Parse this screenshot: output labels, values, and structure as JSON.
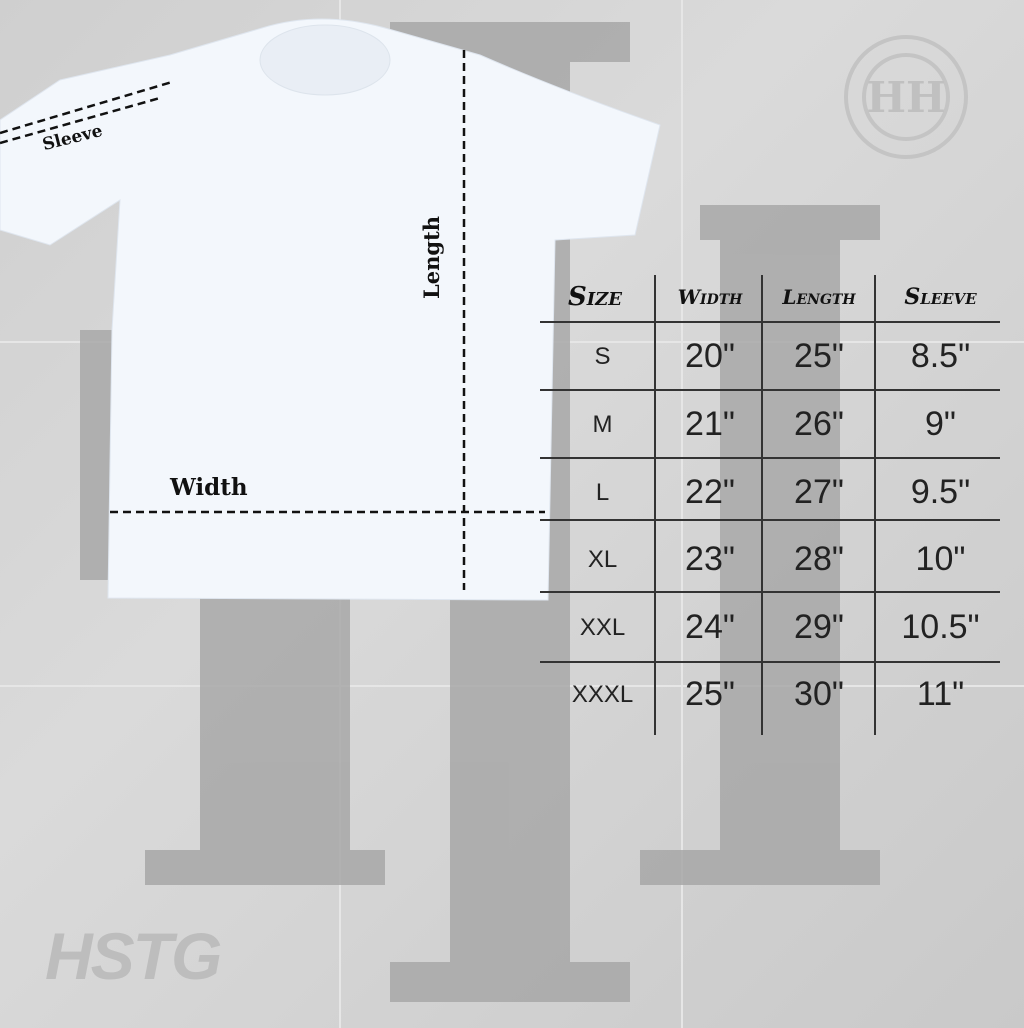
{
  "labels": {
    "sleeve": "Sleeve",
    "length": "Length",
    "width": "Width"
  },
  "table": {
    "headers": [
      "Size",
      "Width",
      "Length",
      "Sleeve"
    ],
    "rows": [
      [
        "S",
        "20\"",
        "25\"",
        "8.5\""
      ],
      [
        "M",
        "21\"",
        "26\"",
        "9\""
      ],
      [
        "L",
        "22\"",
        "27\"",
        "9.5\""
      ],
      [
        "XL",
        "23\"",
        "28\"",
        "10\""
      ],
      [
        "XXL",
        "24\"",
        "29\"",
        "10.5\""
      ],
      [
        "XXXL",
        "25\"",
        "30\"",
        "11\""
      ]
    ]
  },
  "watermark": {
    "brand": "HSTG",
    "monogram": "HH"
  },
  "colors": {
    "shirt": "#f2f6fb",
    "background": "#d2d2d2",
    "watermark": "#a9a9a9"
  }
}
